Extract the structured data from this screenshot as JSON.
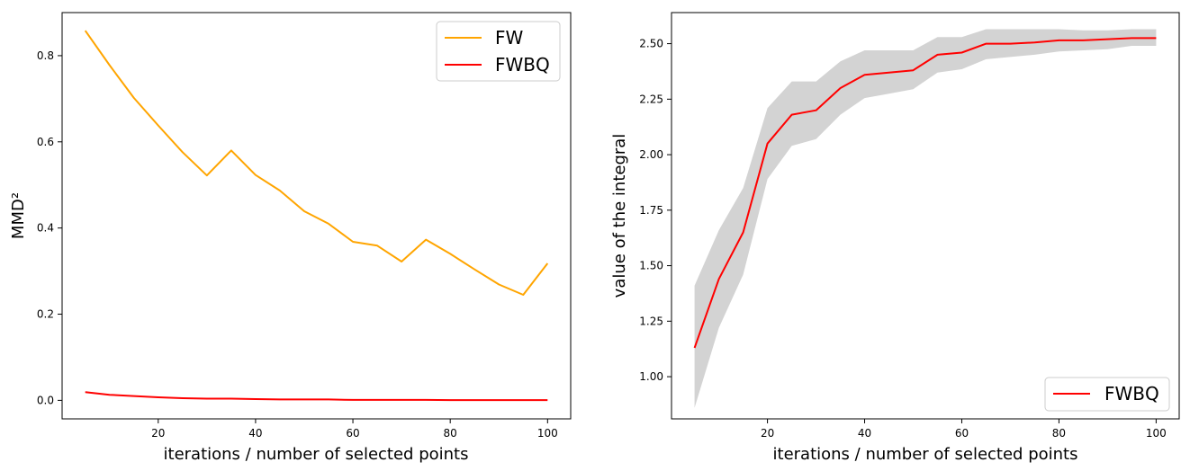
{
  "chart_data": [
    {
      "type": "line",
      "xlabel": "iterations / number of selected points",
      "ylabel": "MMD²",
      "xlim": [
        0.25,
        104.75
      ],
      "ylim": [
        -0.043,
        0.9
      ],
      "xticks": [
        20,
        40,
        60,
        80,
        100
      ],
      "yticks": [
        0.0,
        0.2,
        0.4,
        0.6,
        0.8
      ],
      "ytick_labels": [
        "0.0",
        "0.2",
        "0.4",
        "0.6",
        "0.8"
      ],
      "legend": "top-right",
      "x": [
        5,
        10,
        15,
        20,
        25,
        30,
        35,
        40,
        45,
        50,
        55,
        60,
        65,
        70,
        75,
        80,
        85,
        90,
        95,
        100
      ],
      "series": [
        {
          "name": "FW",
          "color": "#ffa500",
          "values": [
            0.858,
            0.778,
            0.702,
            0.638,
            0.576,
            0.522,
            0.58,
            0.523,
            0.487,
            0.439,
            0.41,
            0.368,
            0.359,
            0.322,
            0.373,
            0.34,
            0.304,
            0.269,
            0.245,
            0.318
          ]
        },
        {
          "name": "FWBQ",
          "color": "#ff0000",
          "values": [
            0.019,
            0.013,
            0.01,
            0.007,
            0.005,
            0.004,
            0.004,
            0.003,
            0.002,
            0.002,
            0.002,
            0.001,
            0.001,
            0.001,
            0.001,
            0.0005,
            0.0005,
            0.0005,
            0.0005,
            0.0005
          ]
        }
      ]
    },
    {
      "type": "line",
      "xlabel": "iterations / number of selected points",
      "ylabel": "value of the integral",
      "xlim": [
        0.25,
        104.75
      ],
      "ylim": [
        0.81,
        2.64
      ],
      "xticks": [
        20,
        40,
        60,
        80,
        100
      ],
      "yticks": [
        1.0,
        1.25,
        1.5,
        1.75,
        2.0,
        2.25,
        2.5
      ],
      "ytick_labels": [
        "1.00",
        "1.25",
        "1.50",
        "1.75",
        "2.00",
        "2.25",
        "2.50"
      ],
      "legend": "bottom-right",
      "x": [
        5,
        10,
        15,
        20,
        25,
        30,
        35,
        40,
        45,
        50,
        55,
        60,
        65,
        70,
        75,
        80,
        85,
        90,
        95,
        100
      ],
      "series": [
        {
          "name": "FWBQ",
          "color": "#ff0000",
          "values": [
            1.13,
            1.44,
            1.65,
            2.05,
            2.18,
            2.2,
            2.3,
            2.36,
            2.37,
            2.38,
            2.45,
            2.46,
            2.5,
            2.5,
            2.505,
            2.515,
            2.515,
            2.52,
            2.525,
            2.525
          ]
        }
      ],
      "band": {
        "color": "#d3d3d3",
        "upper": [
          1.41,
          1.66,
          1.85,
          2.21,
          2.33,
          2.33,
          2.42,
          2.47,
          2.47,
          2.47,
          2.53,
          2.53,
          2.565,
          2.565,
          2.565,
          2.565,
          2.56,
          2.56,
          2.565,
          2.565
        ],
        "lower": [
          0.86,
          1.22,
          1.46,
          1.89,
          2.04,
          2.07,
          2.18,
          2.255,
          2.275,
          2.295,
          2.37,
          2.385,
          2.43,
          2.44,
          2.45,
          2.465,
          2.47,
          2.475,
          2.49,
          2.49
        ]
      }
    }
  ]
}
